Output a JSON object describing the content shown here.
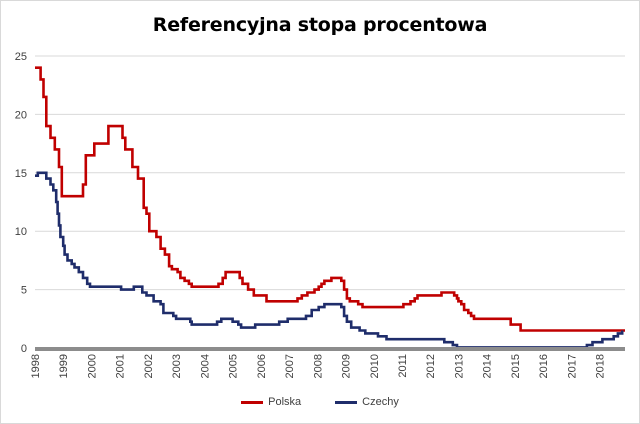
{
  "chart_data": {
    "type": "line",
    "title": "Referencyjna stopa procentowa",
    "xlabel": "",
    "ylabel": "",
    "ylim": [
      0,
      25
    ],
    "xlim": [
      1998.0,
      2018.9
    ],
    "y_ticks": [
      0,
      5,
      10,
      15,
      20,
      25
    ],
    "x_ticks": [
      "1998",
      "1999",
      "2000",
      "2001",
      "2002",
      "2003",
      "2004",
      "2005",
      "2006",
      "2007",
      "2008",
      "2009",
      "2010",
      "2011",
      "2012",
      "2013",
      "2014",
      "2015",
      "2016",
      "2017",
      "2018"
    ],
    "grid": "horizontal",
    "legend_position": "bottom",
    "step": true,
    "series": [
      {
        "name": "Polska",
        "color": "#c00000",
        "points": [
          [
            1998.0,
            24.0
          ],
          [
            1998.2,
            23.0
          ],
          [
            1998.3,
            21.5
          ],
          [
            1998.4,
            19.0
          ],
          [
            1998.55,
            18.0
          ],
          [
            1998.7,
            17.0
          ],
          [
            1998.85,
            15.5
          ],
          [
            1998.95,
            13.0
          ],
          [
            1999.7,
            14.0
          ],
          [
            1999.8,
            16.5
          ],
          [
            2000.1,
            17.5
          ],
          [
            2000.6,
            19.0
          ],
          [
            2001.1,
            18.0
          ],
          [
            2001.2,
            17.0
          ],
          [
            2001.45,
            15.5
          ],
          [
            2001.65,
            14.5
          ],
          [
            2001.85,
            12.0
          ],
          [
            2001.95,
            11.5
          ],
          [
            2002.05,
            10.0
          ],
          [
            2002.3,
            9.5
          ],
          [
            2002.45,
            8.5
          ],
          [
            2002.6,
            8.0
          ],
          [
            2002.75,
            7.0
          ],
          [
            2002.85,
            6.75
          ],
          [
            2003.05,
            6.5
          ],
          [
            2003.15,
            6.0
          ],
          [
            2003.3,
            5.75
          ],
          [
            2003.45,
            5.5
          ],
          [
            2003.55,
            5.25
          ],
          [
            2004.5,
            5.5
          ],
          [
            2004.65,
            6.0
          ],
          [
            2004.75,
            6.5
          ],
          [
            2005.25,
            6.0
          ],
          [
            2005.35,
            5.5
          ],
          [
            2005.55,
            5.0
          ],
          [
            2005.75,
            4.5
          ],
          [
            2006.2,
            4.0
          ],
          [
            2007.3,
            4.25
          ],
          [
            2007.45,
            4.5
          ],
          [
            2007.65,
            4.75
          ],
          [
            2007.9,
            5.0
          ],
          [
            2008.05,
            5.25
          ],
          [
            2008.15,
            5.5
          ],
          [
            2008.25,
            5.75
          ],
          [
            2008.5,
            6.0
          ],
          [
            2008.85,
            5.75
          ],
          [
            2008.95,
            5.0
          ],
          [
            2009.05,
            4.25
          ],
          [
            2009.15,
            4.0
          ],
          [
            2009.45,
            3.75
          ],
          [
            2009.6,
            3.5
          ],
          [
            2011.05,
            3.75
          ],
          [
            2011.3,
            4.0
          ],
          [
            2011.45,
            4.25
          ],
          [
            2011.55,
            4.5
          ],
          [
            2012.4,
            4.75
          ],
          [
            2012.85,
            4.5
          ],
          [
            2012.95,
            4.25
          ],
          [
            2013.0,
            4.0
          ],
          [
            2013.1,
            3.75
          ],
          [
            2013.2,
            3.25
          ],
          [
            2013.35,
            3.0
          ],
          [
            2013.45,
            2.75
          ],
          [
            2013.55,
            2.5
          ],
          [
            2014.85,
            2.0
          ],
          [
            2015.2,
            1.5
          ],
          [
            2018.9,
            1.5
          ]
        ]
      },
      {
        "name": "Czechy",
        "color": "#1f2d6b",
        "points": [
          [
            1998.0,
            14.75
          ],
          [
            1998.1,
            15.0
          ],
          [
            1998.4,
            14.5
          ],
          [
            1998.55,
            14.0
          ],
          [
            1998.65,
            13.5
          ],
          [
            1998.75,
            12.5
          ],
          [
            1998.8,
            11.5
          ],
          [
            1998.85,
            10.5
          ],
          [
            1998.9,
            9.5
          ],
          [
            1999.0,
            8.75
          ],
          [
            1999.05,
            8.0
          ],
          [
            1999.15,
            7.5
          ],
          [
            1999.3,
            7.2
          ],
          [
            1999.4,
            6.9
          ],
          [
            1999.55,
            6.5
          ],
          [
            1999.7,
            6.0
          ],
          [
            1999.85,
            5.5
          ],
          [
            1999.95,
            5.25
          ],
          [
            2001.05,
            5.0
          ],
          [
            2001.5,
            5.25
          ],
          [
            2001.8,
            4.75
          ],
          [
            2001.95,
            4.5
          ],
          [
            2002.2,
            4.0
          ],
          [
            2002.45,
            3.75
          ],
          [
            2002.55,
            3.0
          ],
          [
            2002.9,
            2.75
          ],
          [
            2003.0,
            2.5
          ],
          [
            2003.5,
            2.25
          ],
          [
            2003.55,
            2.0
          ],
          [
            2004.45,
            2.25
          ],
          [
            2004.6,
            2.5
          ],
          [
            2005.0,
            2.25
          ],
          [
            2005.2,
            2.0
          ],
          [
            2005.3,
            1.75
          ],
          [
            2005.8,
            2.0
          ],
          [
            2006.65,
            2.25
          ],
          [
            2006.95,
            2.5
          ],
          [
            2007.6,
            2.75
          ],
          [
            2007.8,
            3.25
          ],
          [
            2008.05,
            3.5
          ],
          [
            2008.25,
            3.75
          ],
          [
            2008.85,
            3.5
          ],
          [
            2008.95,
            2.75
          ],
          [
            2009.05,
            2.25
          ],
          [
            2009.2,
            1.75
          ],
          [
            2009.5,
            1.5
          ],
          [
            2009.7,
            1.25
          ],
          [
            2010.15,
            1.0
          ],
          [
            2010.45,
            0.75
          ],
          [
            2012.5,
            0.5
          ],
          [
            2012.8,
            0.25
          ],
          [
            2012.95,
            0.05
          ],
          [
            2017.55,
            0.25
          ],
          [
            2017.75,
            0.5
          ],
          [
            2018.1,
            0.75
          ],
          [
            2018.5,
            1.0
          ],
          [
            2018.65,
            1.25
          ],
          [
            2018.8,
            1.5
          ]
        ]
      }
    ]
  }
}
